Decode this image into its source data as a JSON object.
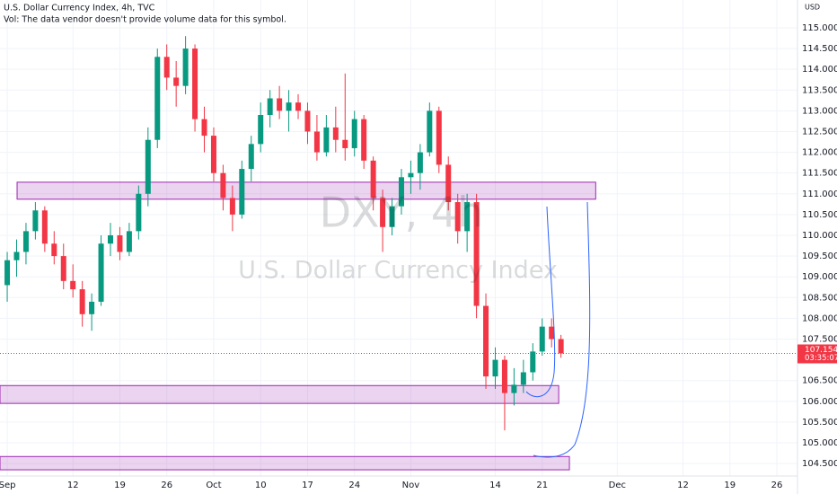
{
  "chart_data": {
    "type": "candlestick",
    "title": "U.S. Dollar Currency Index, 4h, TVC",
    "subtitle": "Vol: The data vendor doesn't provide volume data for this symbol.",
    "watermark": "DXY, 4h",
    "watermark_subtitle": "U.S. Dollar Currency Index",
    "currency": "USD",
    "countdown": "03:35:07",
    "last_price": 107.154,
    "up_color": "#089981",
    "down_color": "#f23645",
    "categories": [
      null,
      null,
      null,
      null,
      null,
      null,
      null,
      null,
      null,
      null,
      null,
      null,
      null,
      null,
      null,
      null,
      null,
      null,
      null,
      null,
      null,
      null,
      null,
      null,
      null,
      null,
      null,
      null,
      null,
      null,
      null,
      null,
      null,
      null,
      null,
      null,
      null,
      null,
      null,
      null,
      null,
      null,
      null,
      null,
      null,
      null,
      null,
      null,
      null,
      null,
      null,
      null,
      null,
      null,
      null,
      null,
      null,
      null,
      null,
      null
    ],
    "open": [
      108.8,
      109.4,
      109.6,
      110.1,
      110.6,
      109.8,
      109.5,
      108.9,
      108.7,
      108.1,
      108.4,
      109.8,
      110.0,
      109.6,
      110.1,
      111.0,
      112.3,
      114.3,
      113.8,
      113.6,
      114.5,
      112.8,
      112.4,
      111.5,
      110.9,
      110.5,
      111.6,
      112.2,
      112.9,
      113.3,
      113.0,
      113.2,
      113.0,
      112.5,
      112.0,
      112.6,
      112.3,
      112.1,
      112.8,
      111.8,
      110.9,
      110.2,
      110.7,
      111.4,
      111.5,
      112.0,
      113.0,
      111.7,
      110.8,
      110.1,
      110.8,
      108.3,
      106.6,
      107.0,
      106.2,
      106.4,
      106.7,
      107.2,
      107.8,
      107.5
    ],
    "high": [
      109.6,
      109.9,
      110.3,
      110.8,
      110.7,
      110.1,
      109.8,
      109.3,
      108.9,
      108.6,
      110.0,
      110.3,
      110.2,
      110.3,
      111.2,
      112.6,
      114.5,
      114.6,
      114.2,
      114.8,
      114.6,
      113.1,
      112.6,
      111.7,
      111.2,
      111.8,
      112.4,
      113.2,
      113.5,
      113.6,
      113.5,
      113.4,
      113.2,
      112.9,
      112.9,
      113.1,
      113.9,
      113.0,
      112.9,
      111.9,
      111.1,
      110.9,
      111.6,
      111.8,
      112.2,
      113.2,
      113.1,
      111.9,
      111.0,
      111.0,
      111.0,
      108.6,
      107.3,
      107.1,
      106.8,
      107.0,
      107.4,
      108.0,
      108.0,
      107.6
    ],
    "low": [
      108.4,
      109.0,
      109.3,
      109.9,
      109.6,
      109.3,
      108.7,
      108.5,
      107.8,
      107.7,
      108.3,
      109.5,
      109.4,
      109.5,
      109.9,
      110.7,
      112.1,
      113.5,
      113.1,
      113.4,
      112.5,
      112.0,
      111.3,
      110.6,
      110.1,
      110.4,
      111.3,
      112.0,
      112.6,
      112.8,
      112.5,
      112.8,
      112.2,
      111.8,
      111.9,
      112.0,
      111.8,
      111.9,
      111.6,
      110.6,
      109.6,
      110.0,
      110.5,
      111.0,
      111.1,
      111.9,
      111.5,
      110.6,
      109.8,
      109.6,
      108.0,
      106.3,
      106.3,
      105.3,
      105.9,
      106.2,
      106.5,
      107.1,
      107.3,
      107.05
    ],
    "close": [
      109.4,
      109.6,
      110.1,
      110.6,
      109.8,
      109.5,
      108.9,
      108.7,
      108.1,
      108.4,
      109.8,
      110.0,
      109.6,
      110.1,
      111.0,
      112.3,
      114.3,
      113.8,
      113.6,
      114.5,
      112.8,
      112.4,
      111.5,
      110.9,
      110.5,
      111.6,
      112.2,
      112.9,
      113.3,
      113.0,
      113.2,
      113.0,
      112.5,
      112.0,
      112.6,
      112.3,
      112.1,
      112.8,
      111.8,
      110.9,
      110.2,
      110.7,
      111.4,
      111.5,
      112.0,
      113.0,
      111.7,
      110.8,
      110.1,
      110.8,
      108.3,
      106.6,
      107.0,
      106.2,
      106.4,
      106.7,
      107.2,
      107.8,
      107.5,
      107.154
    ],
    "xlim": [
      -0.77,
      84.2
    ],
    "xticks": [
      {
        "value": 0,
        "label": "Sep"
      },
      {
        "value": 7,
        "label": "12"
      },
      {
        "value": 12,
        "label": "19"
      },
      {
        "value": 17,
        "label": "26"
      },
      {
        "value": 22,
        "label": "Oct"
      },
      {
        "value": 27,
        "label": "10"
      },
      {
        "value": 32,
        "label": "17"
      },
      {
        "value": 37,
        "label": "24"
      },
      {
        "value": 43,
        "label": "Nov"
      },
      {
        "value": 52,
        "label": "14"
      },
      {
        "value": 57,
        "label": "21"
      },
      {
        "value": 65,
        "label": "Dec"
      },
      {
        "value": 72,
        "label": "12"
      },
      {
        "value": 77,
        "label": "19"
      },
      {
        "value": 82,
        "label": "26"
      }
    ],
    "ylim": [
      104.2,
      115.67
    ],
    "yticks": [
      {
        "value": 104.5,
        "label": "104.500"
      },
      {
        "value": 105,
        "label": "105.000"
      },
      {
        "value": 105.5,
        "label": "105.500"
      },
      {
        "value": 106,
        "label": "106.000"
      },
      {
        "value": 106.5,
        "label": "106.500"
      },
      {
        "value": 107.5,
        "label": "107.500"
      },
      {
        "value": 108,
        "label": "108.000"
      },
      {
        "value": 108.5,
        "label": "108.500"
      },
      {
        "value": 109,
        "label": "109.000"
      },
      {
        "value": 109.5,
        "label": "109.500"
      },
      {
        "value": 110,
        "label": "110.000"
      },
      {
        "value": 110.5,
        "label": "110.500"
      },
      {
        "value": 111,
        "label": "111.000"
      },
      {
        "value": 111.5,
        "label": "111.500"
      },
      {
        "value": 112,
        "label": "112.000"
      },
      {
        "value": 112.5,
        "label": "112.500"
      },
      {
        "value": 113,
        "label": "113.000"
      },
      {
        "value": 113.5,
        "label": "113.500"
      },
      {
        "value": 114,
        "label": "114.000"
      },
      {
        "value": 114.5,
        "label": "114.500"
      },
      {
        "value": 115,
        "label": "115.000"
      }
    ],
    "grid": true,
    "zones": [
      {
        "x": [
          1.05,
          62.7
        ],
        "y": [
          110.87,
          111.28
        ]
      },
      {
        "x": [
          -0.77,
          58.76
        ],
        "y": [
          105.95,
          106.38
        ]
      },
      {
        "x": [
          -0.77,
          59.9
        ],
        "y": [
          104.35,
          104.67
        ]
      }
    ],
    "zone_color": "#9c27b0"
  }
}
